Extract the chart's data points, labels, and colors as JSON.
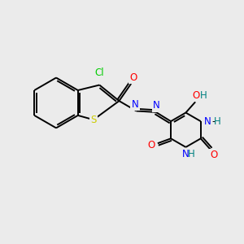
{
  "background_color": "#ebebeb",
  "bond_color": "#000000",
  "atom_colors": {
    "O": "#ff0000",
    "N": "#0000ff",
    "S": "#cccc00",
    "Cl": "#00cc00",
    "C": "#000000",
    "H": "#008080"
  },
  "figsize": [
    3.0,
    3.0
  ],
  "dpi": 100,
  "lw": 1.4,
  "fontsize": 8.5
}
